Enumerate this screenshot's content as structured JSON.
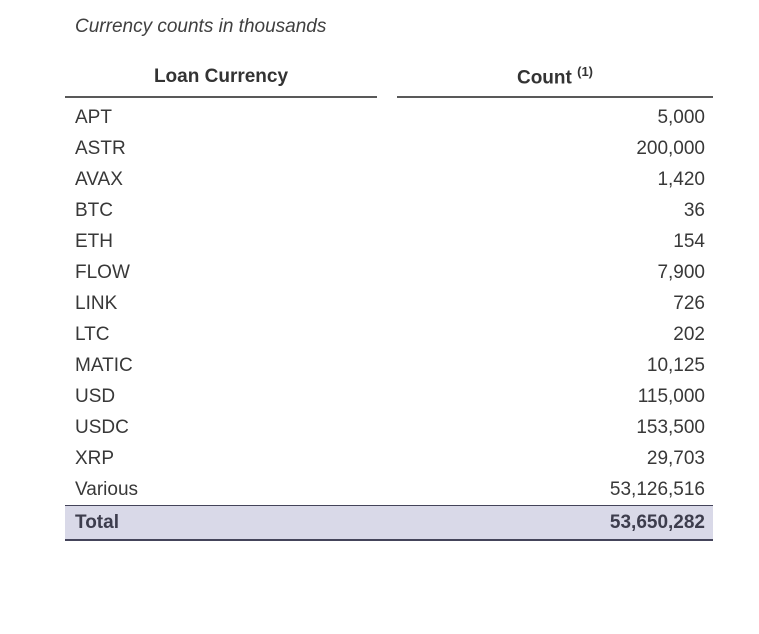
{
  "title": "Currency counts in thousands",
  "table": {
    "headers": {
      "currency": "Loan Currency",
      "count": "Count",
      "count_footnote": "(1)"
    },
    "rows": [
      {
        "currency": "APT",
        "count": "5,000"
      },
      {
        "currency": "ASTR",
        "count": "200,000"
      },
      {
        "currency": "AVAX",
        "count": "1,420"
      },
      {
        "currency": "BTC",
        "count": "36"
      },
      {
        "currency": "ETH",
        "count": "154"
      },
      {
        "currency": "FLOW",
        "count": "7,900"
      },
      {
        "currency": "LINK",
        "count": "726"
      },
      {
        "currency": "LTC",
        "count": "202"
      },
      {
        "currency": "MATIC",
        "count": "10,125"
      },
      {
        "currency": "USD",
        "count": "115,000"
      },
      {
        "currency": "USDC",
        "count": "153,500"
      },
      {
        "currency": "XRP",
        "count": "29,703"
      },
      {
        "currency": "Various",
        "count": "53,126,516"
      }
    ],
    "total": {
      "label": "Total",
      "value": "53,650,282"
    }
  },
  "colors": {
    "total_row_background": "#d9d9e8",
    "header_rule": "#595959",
    "total_row_border": "#44445a",
    "body_text": "#383838"
  }
}
